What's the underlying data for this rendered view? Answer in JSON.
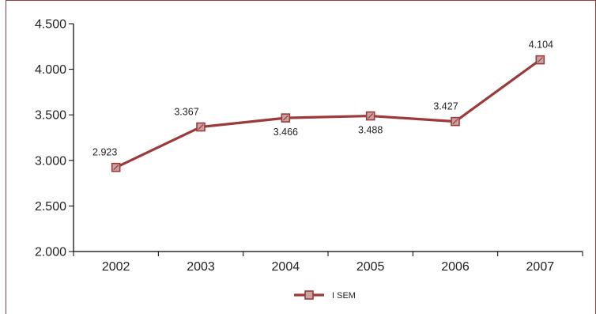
{
  "chart_data": {
    "type": "line",
    "title": "",
    "xlabel": "",
    "ylabel": "",
    "categories": [
      "2002",
      "2003",
      "2004",
      "2005",
      "2006",
      "2007"
    ],
    "series": [
      {
        "name": "I SEM",
        "values": [
          2923,
          3367,
          3466,
          3488,
          3427,
          4104
        ],
        "value_labels": [
          "2.923",
          "3.367",
          "3.466",
          "3.488",
          "3.427",
          "4.104"
        ],
        "color": "#9c3a3a"
      }
    ],
    "ylim": [
      2000,
      4500
    ],
    "yticks": [
      2000,
      2500,
      3000,
      3500,
      4000,
      4500
    ],
    "ytick_labels": [
      "2.000",
      "2.500",
      "3.000",
      "3.500",
      "4.000",
      "4.500"
    ],
    "grid": false,
    "legend": "bottom-center",
    "label_positions": [
      "above",
      "above",
      "below",
      "below",
      "above",
      "above"
    ]
  }
}
